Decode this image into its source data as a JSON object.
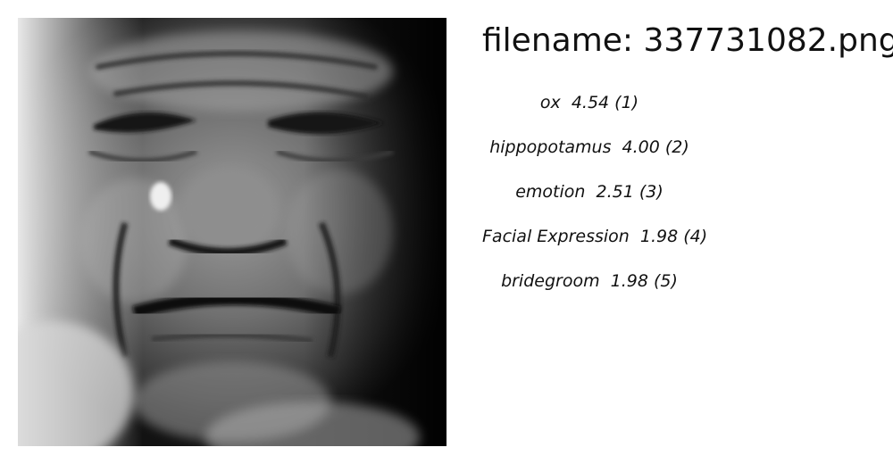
{
  "image": {
    "alt": "grayscale close-up of an elderly face"
  },
  "header": {
    "filename_label": "filename:",
    "filename_value": "337731082.png"
  },
  "predictions": [
    {
      "label": "ox",
      "score": "4.54",
      "rank": "(1)"
    },
    {
      "label": "hippopotamus",
      "score": "4.00",
      "rank": "(2)"
    },
    {
      "label": "emotion",
      "score": "2.51",
      "rank": "(3)"
    },
    {
      "label": "Facial Expression",
      "score": "1.98",
      "rank": "(4)"
    },
    {
      "label": "bridegroom",
      "score": "1.98",
      "rank": "(5)"
    }
  ]
}
